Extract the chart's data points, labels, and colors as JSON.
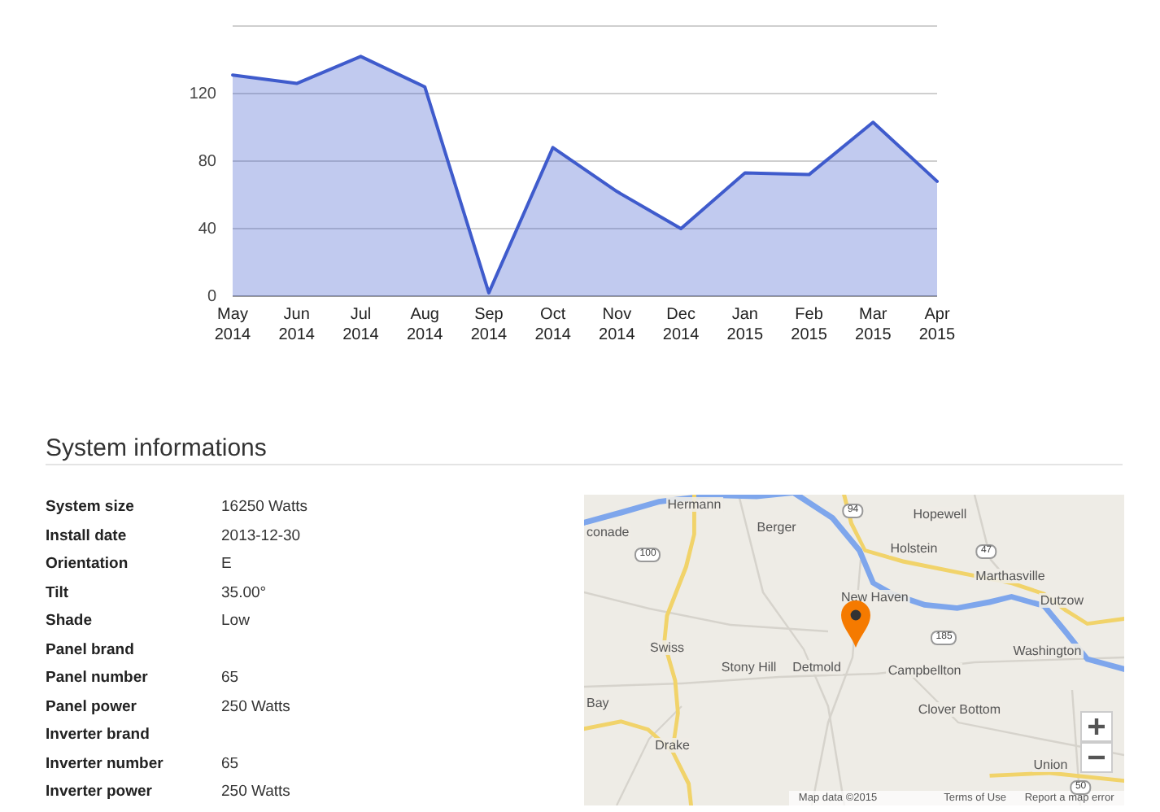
{
  "chart_data": [
    {
      "type": "area",
      "categories": [
        "May 2014",
        "Jun 2014",
        "Jul 2014",
        "Aug 2014",
        "Sep 2014",
        "Oct 2014",
        "Nov 2014",
        "Dec 2014",
        "Jan 2015",
        "Feb 2015",
        "Mar 2015",
        "Apr 2015"
      ],
      "values": [
        131,
        126,
        142,
        124,
        2,
        88,
        62,
        40,
        73,
        72,
        103,
        68
      ],
      "color": "#3f5bcc",
      "ylim": [
        0,
        160
      ],
      "yticks": [
        0,
        40,
        80,
        120,
        {
          "value": 160,
          "label": null
        }
      ],
      "grid": "y",
      "legend": false,
      "marker": "none"
    },
    {
      "type": "other",
      "title": "System informations",
      "annotations": [
        "System size",
        "16250 Watts",
        "Install date",
        "2013-12-30",
        "Orientation",
        "E",
        "Tilt",
        "35.00°",
        "Shade",
        "Low",
        "Panel brand",
        "Panel number",
        "65",
        "Panel power",
        "250 Watts",
        "Inverter brand",
        "Inverter number",
        "65",
        "Inverter power",
        "250 Watts"
      ]
    },
    {
      "type": "other",
      "annotations": [
        "Hermann",
        "conade",
        "Berger",
        "Hopewell",
        "Holstein",
        "Marthasville",
        "New Haven",
        "Dutzow",
        "Swiss",
        "Stony Hill",
        "Detmold",
        "Campbellton",
        "Washington",
        "Bay",
        "Clover Bottom",
        "Drake",
        "Union",
        "94",
        "100",
        "47",
        "185",
        "50",
        "Map data ©2015",
        "Terms of Use",
        "Report a map error"
      ]
    }
  ]
}
